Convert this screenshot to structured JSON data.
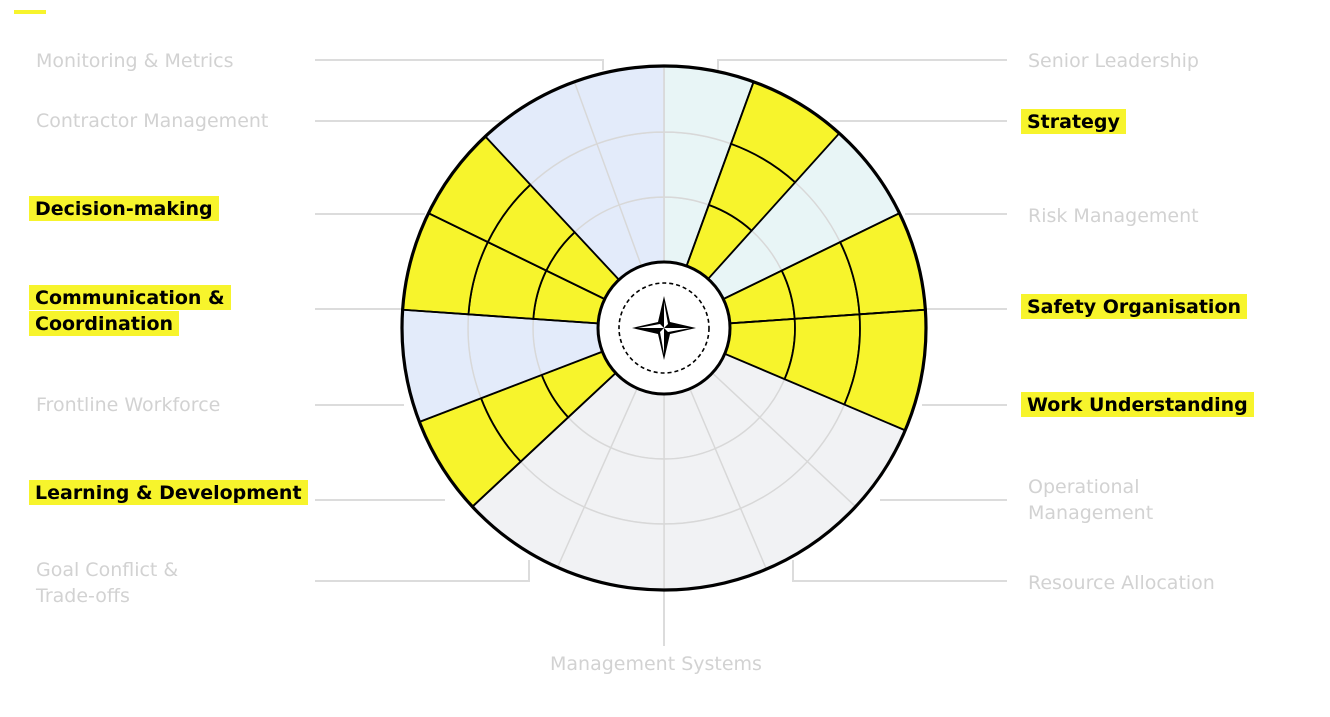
{
  "labels": {
    "monitoring": "Monitoring & Metrics",
    "contractor": "Contractor Management",
    "decision": "Decision-making",
    "communication_1": "Communication &",
    "communication_2": "Coordination",
    "frontline": "Frontline Workforce",
    "learning": "Learning & Development",
    "goal_1": "Goal Conflict &",
    "goal_2": "Trade-offs",
    "senior": "Senior Leadership",
    "strategy": "Strategy",
    "risk": "Risk Management",
    "safety": "Safety Organisation",
    "work": "Work Understanding",
    "operational_1": "Operational",
    "operational_2": "Management",
    "resource": "Resource Allocation",
    "management_systems": "Management Systems"
  },
  "colors": {
    "highlight": "#f7f42c",
    "leadership_fill": "#e8f5f6",
    "workforce_fill": "#e3ebfa",
    "systems_fill": "#f1f2f4",
    "muted_text": "#d2d2d2",
    "connector": "#dcdcdc"
  },
  "center_icon": "compass-star-icon"
}
